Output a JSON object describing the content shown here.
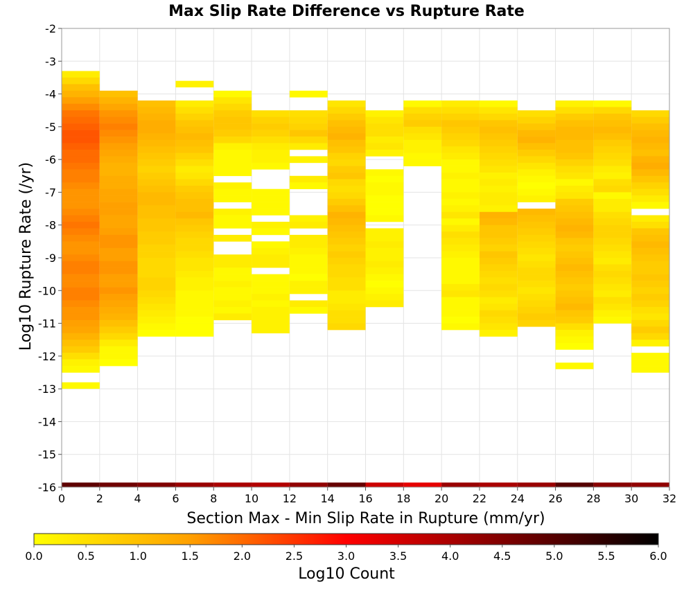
{
  "chart_data": {
    "type": "heatmap",
    "title": "Max Slip Rate Difference vs Rupture Rate",
    "xlabel": "Section Max - Min Slip Rate in Rupture (mm/yr)",
    "ylabel": "Log10 Rupture Rate (/yr)",
    "xlim": [
      0,
      32
    ],
    "ylim": [
      -16,
      -2
    ],
    "x_ticks": [
      "0",
      "2",
      "4",
      "6",
      "8",
      "10",
      "12",
      "14",
      "16",
      "18",
      "20",
      "22",
      "24",
      "26",
      "28",
      "30",
      "32"
    ],
    "y_ticks": [
      "-2",
      "-3",
      "-4",
      "-5",
      "-6",
      "-7",
      "-8",
      "-9",
      "-10",
      "-11",
      "-12",
      "-13",
      "-14",
      "-15",
      "-16"
    ],
    "grid": true,
    "x_bin_width": 2,
    "y_bin_height": 0.2,
    "colorbar": {
      "label": "Log10 Count",
      "min": 0.0,
      "max": 6.0,
      "ticks": [
        "0.0",
        "0.5",
        "1.0",
        "1.5",
        "2.0",
        "2.5",
        "3.0",
        "3.5",
        "4.0",
        "4.5",
        "5.0",
        "5.5",
        "6.0"
      ],
      "stops": [
        {
          "v": 0.0,
          "color": "#ffff00"
        },
        {
          "v": 1.5,
          "color": "#ffa000"
        },
        {
          "v": 3.0,
          "color": "#ff0000"
        },
        {
          "v": 4.5,
          "color": "#800000"
        },
        {
          "v": 6.0,
          "color": "#000000"
        }
      ]
    },
    "columns": [
      {
        "x": 1,
        "y_top": -3.3,
        "y_bottom": -12.4,
        "values": [
          0.3,
          0.6,
          1.0,
          1.2,
          1.5,
          1.7,
          1.9,
          2.0,
          2.1,
          2.2,
          2.2,
          2.1,
          2.0,
          2.0,
          1.9,
          1.8,
          1.8,
          1.7,
          1.6,
          1.6,
          1.6,
          1.7,
          1.8,
          1.9,
          1.8,
          1.7,
          1.6,
          1.6,
          1.7,
          1.8,
          1.8,
          1.7,
          1.7,
          1.8,
          1.8,
          1.7,
          1.6,
          1.6,
          1.5,
          1.4,
          1.2,
          1.0,
          0.8,
          0.5,
          0.2,
          0.1
        ],
        "extra_cells": [
          {
            "y": -12.9,
            "value": 0.1
          }
        ],
        "overflow": 4.9
      },
      {
        "x": 3,
        "y_top": -3.9,
        "y_bottom": -12.4,
        "values": [
          1.0,
          1.2,
          1.4,
          1.6,
          1.7,
          1.8,
          1.7,
          1.6,
          1.5,
          1.4,
          1.3,
          1.2,
          1.2,
          1.3,
          1.3,
          1.4,
          1.4,
          1.5,
          1.5,
          1.4,
          1.4,
          1.5,
          1.6,
          1.6,
          1.5,
          1.5,
          1.6,
          1.6,
          1.5,
          1.5,
          1.6,
          1.5,
          1.4,
          1.3,
          1.2,
          1.0,
          0.8,
          0.6,
          0.3,
          0.1,
          0.1,
          0.0
        ],
        "overflow": 4.7
      },
      {
        "x": 5,
        "y_top": -4.2,
        "y_bottom": -11.5,
        "values": [
          1.0,
          1.1,
          1.2,
          1.3,
          1.3,
          1.2,
          1.1,
          1.0,
          0.9,
          0.8,
          0.7,
          0.8,
          0.9,
          1.0,
          1.1,
          1.1,
          1.0,
          1.0,
          0.9,
          0.9,
          0.8,
          0.8,
          0.7,
          0.7,
          0.6,
          0.6,
          0.6,
          0.7,
          0.7,
          0.6,
          0.5,
          0.4,
          0.3,
          0.2,
          0.1,
          0.0
        ],
        "overflow": 4.5
      },
      {
        "x": 7,
        "y_top": -4.2,
        "y_bottom": -11.5,
        "values": [
          0.3,
          0.5,
          0.7,
          0.9,
          1.0,
          1.1,
          1.0,
          0.9,
          0.7,
          0.5,
          0.3,
          0.4,
          0.6,
          0.8,
          0.9,
          1.0,
          1.0,
          1.1,
          0.9,
          0.8,
          0.7,
          0.6,
          0.6,
          0.5,
          0.4,
          0.4,
          0.3,
          0.2,
          0.2,
          0.1,
          0.1,
          0.1,
          0.1,
          0.0,
          0.0,
          0.0
        ],
        "extra_cells": [
          {
            "y": -3.7,
            "value": 0.2
          }
        ],
        "overflow": 4.2
      },
      {
        "x": 9,
        "y_top": -3.9,
        "y_bottom": -10.9,
        "values": [
          0.1,
          0.4,
          0.6,
          0.8,
          0.9,
          0.9,
          0.8,
          0.6,
          0.2,
          0.1,
          0.1,
          0.1,
          0.1,
          null,
          0.2,
          0.1,
          0.1,
          null,
          0.2,
          0.1,
          0.1,
          null,
          0.3,
          null,
          null,
          0.3,
          0.3,
          0.1,
          0.1,
          0.2,
          0.1,
          0.1,
          0.2,
          0.1,
          0.3
        ],
        "overflow": 4.0
      },
      {
        "x": 11,
        "y_top": -4.5,
        "y_bottom": -11.3,
        "values": [
          0.5,
          0.7,
          0.8,
          0.7,
          0.5,
          0.3,
          0.2,
          0.2,
          0.1,
          null,
          null,
          null,
          0.1,
          0.1,
          0.1,
          0.1,
          null,
          0.2,
          0.1,
          null,
          0.1,
          0.2,
          0.3,
          0.3,
          null,
          0.1,
          0.1,
          0.1,
          0.2,
          0.1,
          0.2,
          0.2,
          0.2,
          0.2
        ],
        "overflow": 3.9
      },
      {
        "x": 13,
        "y_top": -3.9,
        "y_bottom": -10.7,
        "values": [
          0.1,
          null,
          null,
          0.5,
          0.6,
          0.7,
          0.9,
          0.6,
          0.3,
          null,
          0.2,
          null,
          null,
          0.3,
          0.1,
          null,
          null,
          null,
          null,
          0.2,
          0.3,
          null,
          0.3,
          0.3,
          0.2,
          0.1,
          0.1,
          0.1,
          0.0,
          0.2,
          0.2,
          null,
          0.3,
          0.1
        ],
        "overflow": 4.3
      },
      {
        "x": 15,
        "y_top": -4.2,
        "y_bottom": -11.3,
        "values": [
          0.4,
          0.6,
          0.8,
          1.0,
          1.1,
          1.2,
          1.0,
          0.9,
          0.7,
          0.6,
          0.8,
          0.9,
          0.6,
          0.5,
          0.6,
          0.8,
          1.0,
          1.2,
          1.1,
          1.0,
          0.9,
          0.8,
          0.7,
          0.8,
          0.7,
          0.6,
          0.6,
          0.5,
          0.5,
          0.3,
          0.3,
          0.4,
          0.5,
          0.5,
          0.6
        ],
        "overflow": 4.8
      },
      {
        "x": 17,
        "y_top": -4.5,
        "y_bottom": -10.5,
        "values": [
          0.2,
          0.4,
          0.5,
          0.5,
          0.3,
          0.4,
          0.2,
          null,
          null,
          0.1,
          0.0,
          0.1,
          0.1,
          0.0,
          0.0,
          0.0,
          0.1,
          null,
          0.2,
          0.2,
          0.3,
          0.2,
          0.2,
          0.3,
          0.2,
          0.1,
          0.0,
          0.1,
          0.2,
          0.3
        ],
        "overflow": 3.6
      },
      {
        "x": 19,
        "y_top": -4.2,
        "y_bottom": -6.2,
        "values": [
          0.1,
          0.5,
          0.7,
          0.8,
          0.5,
          0.4,
          0.2,
          0.2,
          0.1,
          0.1
        ],
        "overflow": 3.3
      },
      {
        "x": 21,
        "y_top": -4.2,
        "y_bottom": -11.3,
        "values": [
          0.3,
          0.5,
          0.7,
          0.9,
          0.8,
          0.7,
          0.6,
          0.4,
          0.3,
          0.1,
          0.1,
          0.2,
          0.1,
          0.1,
          0.2,
          0.1,
          0.2,
          0.4,
          0.1,
          0.3,
          0.5,
          0.4,
          0.3,
          0.2,
          0.1,
          0.1,
          0.1,
          0.1,
          0.3,
          0.4,
          0.1,
          0.1,
          0.1,
          0.0,
          0.1
        ],
        "overflow": 4.2
      },
      {
        "x": 23,
        "y_top": -4.2,
        "y_bottom": -11.5,
        "values": [
          0.1,
          0.4,
          0.6,
          0.9,
          1.0,
          0.9,
          0.8,
          0.7,
          0.6,
          0.5,
          0.4,
          0.2,
          0.3,
          0.2,
          0.3,
          0.3,
          0.2,
          1.2,
          1.1,
          0.9,
          0.9,
          0.8,
          0.7,
          0.9,
          0.8,
          0.7,
          0.6,
          0.5,
          0.6,
          0.5,
          0.3,
          0.4,
          0.6,
          0.5,
          0.4,
          0.2
        ],
        "overflow": 4.0
      },
      {
        "x": 25,
        "y_top": -4.5,
        "y_bottom": -11.0,
        "values": [
          0.5,
          0.7,
          0.9,
          1.1,
          1.2,
          1.0,
          0.8,
          0.6,
          0.4,
          0.2,
          0.1,
          0.0,
          0.1,
          0.2,
          null,
          1.1,
          1.0,
          0.9,
          0.8,
          0.7,
          0.6,
          0.5,
          0.4,
          0.5,
          0.6,
          0.6,
          0.5,
          0.4,
          0.5,
          0.6,
          0.7,
          0.8,
          0.7
        ],
        "overflow": 4.2
      },
      {
        "x": 27,
        "y_top": -4.2,
        "y_bottom": -11.8,
        "values": [
          0.2,
          0.5,
          0.8,
          1.0,
          1.1,
          1.1,
          1.0,
          1.0,
          0.9,
          0.7,
          0.5,
          0.4,
          0.1,
          0.3,
          0.4,
          0.8,
          0.9,
          1.0,
          1.1,
          1.2,
          1.1,
          0.9,
          0.8,
          0.9,
          1.0,
          1.1,
          1.0,
          0.9,
          0.8,
          0.9,
          1.0,
          1.1,
          0.9,
          0.8,
          0.5,
          0.2,
          0.1,
          0.0
        ],
        "extra_cells": [
          {
            "y": -12.3,
            "value": 0.1
          }
        ],
        "overflow": 5.0
      },
      {
        "x": 29,
        "y_top": -4.2,
        "y_bottom": -11.0,
        "values": [
          0.1,
          0.6,
          0.9,
          1.0,
          1.1,
          1.0,
          0.8,
          0.7,
          0.6,
          0.5,
          0.3,
          0.2,
          0.5,
          0.6,
          0.1,
          0.3,
          0.3,
          0.5,
          0.6,
          0.7,
          0.7,
          0.6,
          0.5,
          0.4,
          0.3,
          0.5,
          0.6,
          0.5,
          0.4,
          0.3,
          0.5,
          0.4,
          0.2,
          0.1
        ],
        "overflow": 4.4
      },
      {
        "x": 31,
        "y_top": -4.5,
        "y_bottom": -12.4,
        "values": [
          0.6,
          0.8,
          1.0,
          1.1,
          1.2,
          1.1,
          1.0,
          1.2,
          1.3,
          1.1,
          0.9,
          0.7,
          0.5,
          0.3,
          0.1,
          null,
          0.3,
          0.5,
          0.9,
          1.0,
          1.1,
          1.0,
          0.9,
          0.8,
          0.8,
          0.9,
          0.8,
          0.7,
          0.8,
          0.7,
          0.5,
          0.4,
          0.6,
          0.8,
          0.6,
          0.2,
          null,
          0.1,
          0.1,
          0.1
        ],
        "overflow": 4.3
      }
    ]
  }
}
